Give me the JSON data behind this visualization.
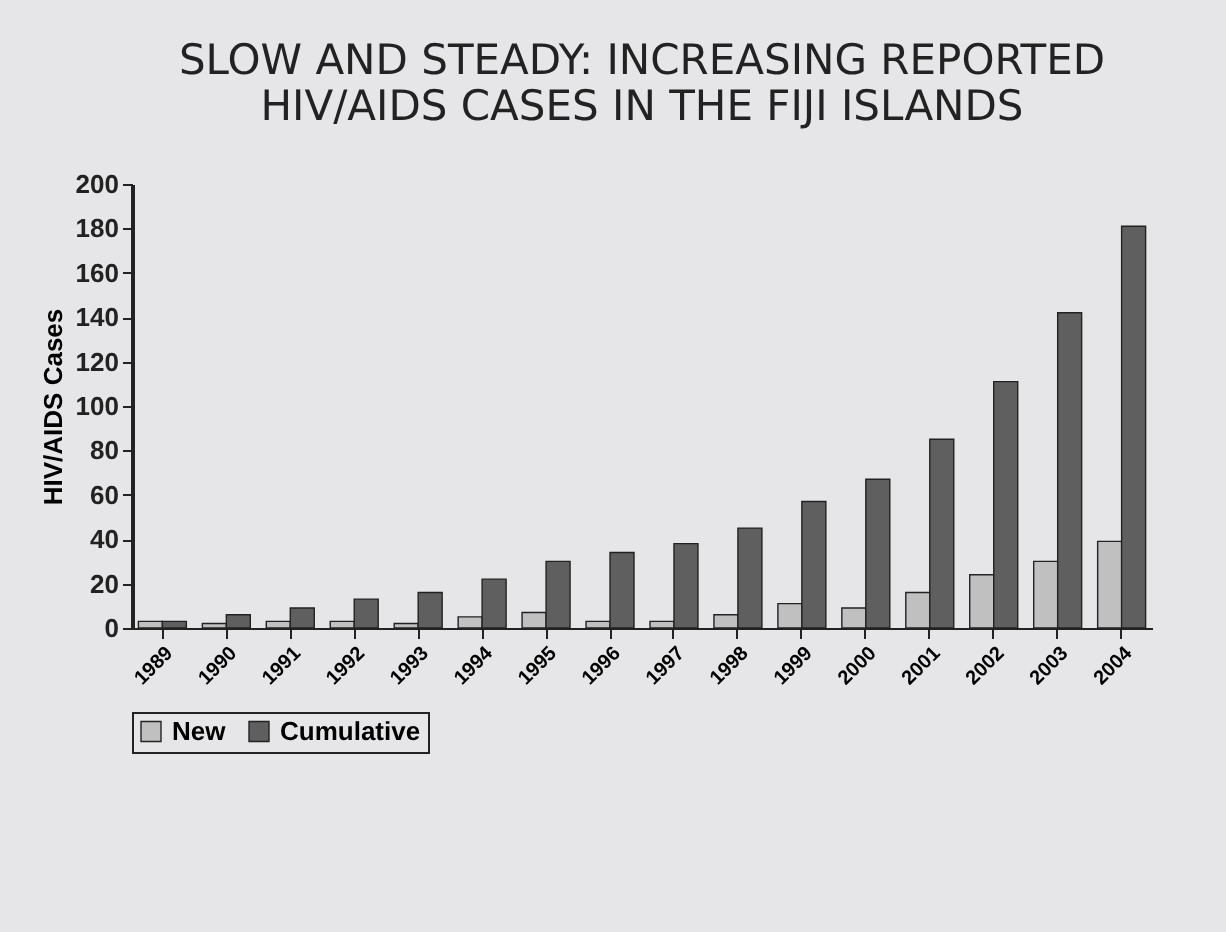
{
  "chart_data": {
    "type": "bar",
    "title": "SLOW AND STEADY: INCREASING REPORTED HIV/AIDS CASES IN THE FIJI ISLANDS",
    "ylabel": "HIV/AIDS Cases",
    "categories": [
      "1989",
      "1990",
      "1991",
      "1992",
      "1993",
      "1994",
      "1995",
      "1996",
      "1997",
      "1998",
      "1999",
      "2000",
      "2001",
      "2002",
      "2003",
      "2004"
    ],
    "series": [
      {
        "name": "New",
        "color": "#c0c0c0",
        "values": [
          3,
          2,
          3,
          3,
          2,
          5,
          7,
          3,
          3,
          6,
          11,
          9,
          16,
          24,
          30,
          39
        ]
      },
      {
        "name": "Cumulative",
        "color": "#5f5f5f",
        "values": [
          3,
          6,
          9,
          13,
          16,
          22,
          30,
          34,
          38,
          45,
          57,
          67,
          85,
          111,
          142,
          181
        ]
      }
    ],
    "ylim": [
      0,
      200
    ],
    "yticks": [
      0,
      20,
      40,
      60,
      80,
      100,
      120,
      140,
      160,
      180,
      200
    ],
    "grid": false,
    "legend": "bottom"
  }
}
